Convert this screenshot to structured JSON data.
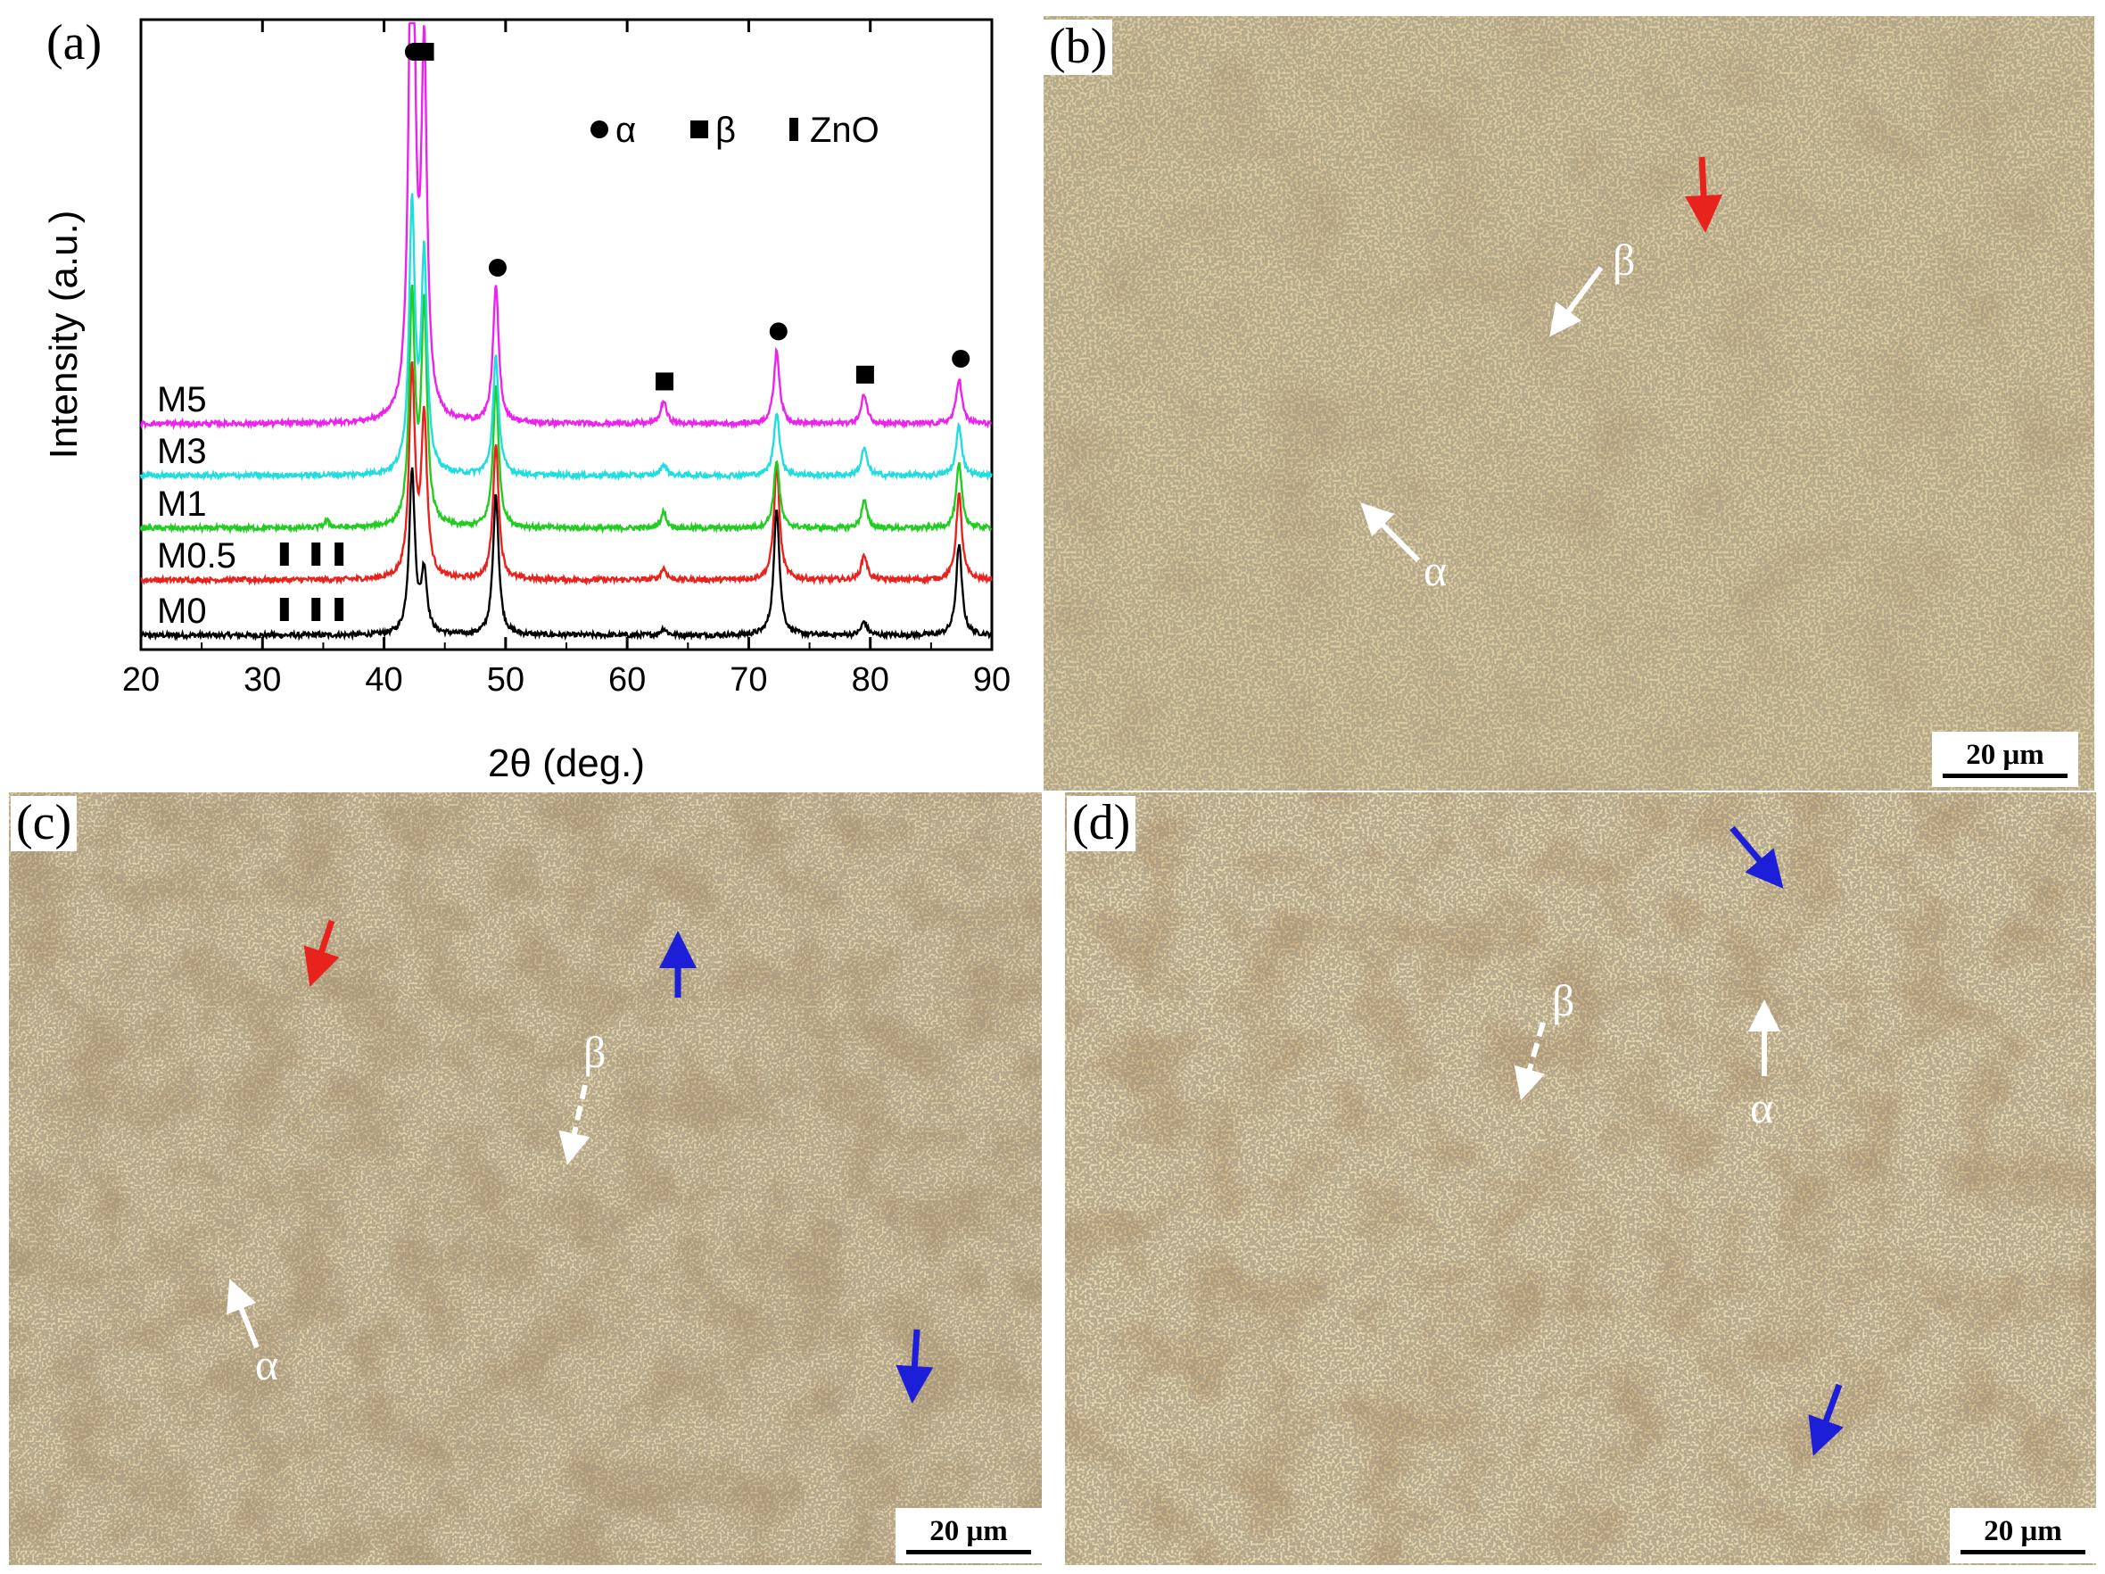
{
  "panels": {
    "a": {
      "label": "(a)"
    },
    "b": {
      "label": "(b)",
      "scale": "20 μm",
      "alpha": "α",
      "beta": "β"
    },
    "c": {
      "label": "(c)",
      "scale": "20 μm",
      "alpha": "α",
      "beta": "β"
    },
    "d": {
      "label": "(d)",
      "scale": "20 μm",
      "alpha": "α",
      "beta": "β"
    }
  },
  "colors": {
    "micro_background": "#d8c497",
    "beta_phase": "#b08a4e",
    "precipitates": "#5a5040",
    "arrow_white": "#ffffff",
    "arrow_red": "#e8231d",
    "arrow_blue": "#1d1fd8"
  },
  "chart_data": {
    "type": "line",
    "xlabel": "2θ (deg.)",
    "ylabel": "Intensity (a.u.)",
    "xlim": [
      20,
      90
    ],
    "xticks": [
      20,
      30,
      40,
      50,
      60,
      70,
      80,
      90
    ],
    "legend": {
      "placement": "top-right",
      "items": [
        {
          "marker": "circle",
          "label": "α"
        },
        {
          "marker": "square",
          "label": "β"
        },
        {
          "marker": "bar",
          "label": "ZnO"
        }
      ]
    },
    "series": [
      {
        "name": "M0",
        "color": "#000000",
        "baseline": 0,
        "peaks": [
          [
            42.3,
            72
          ],
          [
            43.3,
            27
          ],
          [
            49.2,
            62
          ],
          [
            72.3,
            56
          ],
          [
            79.5,
            6
          ],
          [
            87.3,
            40
          ],
          [
            63.0,
            3
          ]
        ]
      },
      {
        "name": "M0.5",
        "color": "#e8231d",
        "baseline": 1,
        "peaks": [
          [
            42.3,
            92
          ],
          [
            43.3,
            70
          ],
          [
            49.2,
            60
          ],
          [
            72.3,
            50
          ],
          [
            79.5,
            11
          ],
          [
            87.3,
            38
          ],
          [
            63.0,
            5
          ]
        ]
      },
      {
        "name": "M1",
        "color": "#22cc22",
        "baseline": 2,
        "peaks": [
          [
            42.3,
            100
          ],
          [
            43.3,
            95
          ],
          [
            49.2,
            62
          ],
          [
            72.3,
            30
          ],
          [
            79.5,
            12
          ],
          [
            87.3,
            28
          ],
          [
            63.0,
            7
          ],
          [
            35.3,
            3
          ]
        ]
      },
      {
        "name": "M3",
        "color": "#22dddd",
        "baseline": 3,
        "peaks": [
          [
            42.3,
            118
          ],
          [
            43.3,
            94
          ],
          [
            49.2,
            52
          ],
          [
            72.3,
            28
          ],
          [
            79.5,
            12
          ],
          [
            87.3,
            22
          ],
          [
            63.0,
            5
          ]
        ]
      },
      {
        "name": "M5",
        "color": "#ee22ee",
        "baseline": 4,
        "peaks": [
          [
            42.3,
            270
          ],
          [
            43.3,
            156
          ],
          [
            49.2,
            60
          ],
          [
            72.3,
            32
          ],
          [
            79.5,
            13
          ],
          [
            87.3,
            20
          ],
          [
            63.0,
            10
          ]
        ]
      }
    ],
    "phase_markers": [
      {
        "phase": "α",
        "marker": "circle",
        "x": [
          42.3,
          49.2,
          72.3,
          87.3
        ]
      },
      {
        "phase": "β",
        "marker": "square",
        "x": [
          43.3,
          63.0,
          79.5
        ]
      },
      {
        "phase": "ZnO",
        "marker": "bar",
        "x": [
          31.8,
          34.4,
          36.3
        ],
        "series": [
          "M0",
          "M0.5"
        ]
      }
    ]
  }
}
